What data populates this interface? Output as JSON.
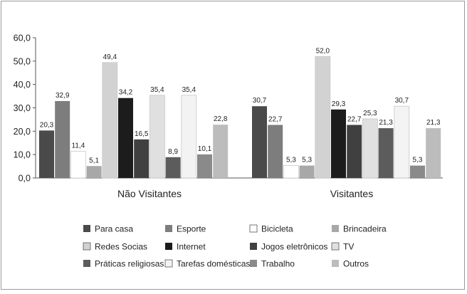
{
  "chart_data": {
    "type": "bar",
    "title": "",
    "xlabel": "",
    "ylabel": "",
    "ylim": [
      0,
      60
    ],
    "yticks": [
      "0,0",
      "10,0",
      "20,0",
      "30,0",
      "40,0",
      "50,0",
      "60,0"
    ],
    "grid": false,
    "legend_position": "bottom",
    "categories": [
      "Não Visitantes",
      "Visitantes"
    ],
    "series": [
      {
        "name": "Para casa",
        "color": "#4a4a4a",
        "values": [
          20.3,
          30.7
        ],
        "labels": [
          "20,3",
          "30,7"
        ]
      },
      {
        "name": "Esporte",
        "color": "#7d7d7d",
        "values": [
          32.9,
          22.7
        ],
        "labels": [
          "32,9",
          "22,7"
        ]
      },
      {
        "name": "Bicicleta",
        "color": "#ffffff",
        "values": [
          11.4,
          5.3
        ],
        "labels": [
          "11,4",
          "5,3"
        ]
      },
      {
        "name": "Brincadeira",
        "color": "#a8a8a8",
        "values": [
          5.1,
          5.3
        ],
        "labels": [
          "5,1",
          "5,3"
        ]
      },
      {
        "name": "Redes Socias",
        "color": "#d2d2d2",
        "values": [
          49.4,
          52.0
        ],
        "labels": [
          "49,4",
          "52,0"
        ]
      },
      {
        "name": "Internet",
        "color": "#1c1c1c",
        "values": [
          34.2,
          29.3
        ],
        "labels": [
          "34,2",
          "29,3"
        ]
      },
      {
        "name": "Jogos eletrônicos",
        "color": "#404040",
        "values": [
          16.5,
          22.7
        ],
        "labels": [
          "16,5",
          "22,7"
        ]
      },
      {
        "name": "TV",
        "color": "#e0e0e0",
        "values": [
          35.4,
          25.3
        ],
        "labels": [
          "35,4",
          "25,3"
        ]
      },
      {
        "name": "Práticas religiosas",
        "color": "#5c5c5c",
        "values": [
          8.9,
          21.3
        ],
        "labels": [
          "8,9",
          "21,3"
        ]
      },
      {
        "name": "Tarefas domésticas",
        "color": "#f3f3f3",
        "values": [
          35.4,
          30.7
        ],
        "labels": [
          "35,4",
          "30,7"
        ]
      },
      {
        "name": "Trabalho",
        "color": "#8a8a8a",
        "values": [
          10.1,
          5.3
        ],
        "labels": [
          "10,1",
          "5,3"
        ]
      },
      {
        "name": "Outros",
        "color": "#bcbcbc",
        "values": [
          22.8,
          21.3
        ],
        "labels": [
          "22,8",
          "21,3"
        ]
      }
    ]
  }
}
